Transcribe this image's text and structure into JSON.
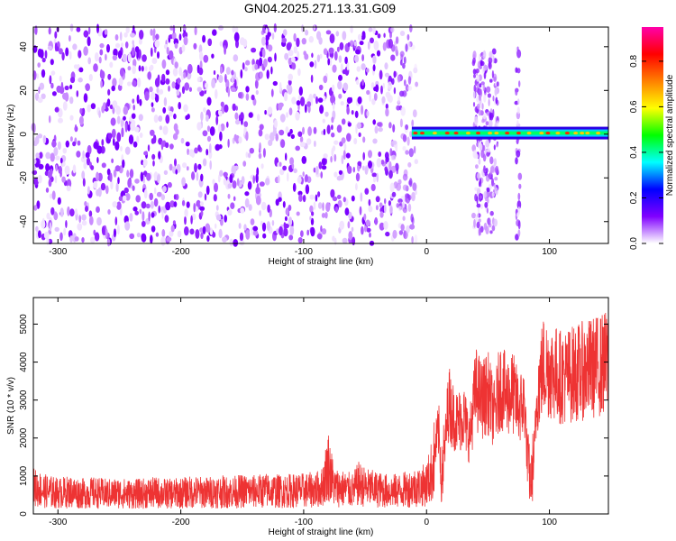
{
  "figure": {
    "title": "GN04.2025.271.13.31.G09"
  },
  "chart_data": [
    {
      "type": "heatmap",
      "name": "spectrogram",
      "xlabel": "Height of straight line (km)",
      "ylabel": "Frequency (Hz)",
      "xlim": [
        -320,
        148
      ],
      "ylim": [
        -50,
        49
      ],
      "x_ticks": [
        -300,
        -200,
        -100,
        0,
        100
      ],
      "y_ticks": [
        -40,
        -20,
        0,
        20,
        40
      ],
      "colorbar": {
        "label": "Normalized spectral amplitude",
        "range": [
          0,
          0.95
        ],
        "ticks": [
          0.0,
          0.2,
          0.4,
          0.6,
          0.8
        ],
        "colors": [
          "#ffffff",
          "#8000ff",
          "#0000ff",
          "#00ffff",
          "#00ff00",
          "#ffff00",
          "#ff8000",
          "#ff0000",
          "#ff00aa"
        ]
      },
      "features": [
        {
          "x_range": [
            -320,
            -8
          ],
          "y_range": [
            -50,
            49
          ],
          "amplitude": 0.1,
          "kind": "scattered noise"
        },
        {
          "x_range": [
            -12,
            148
          ],
          "y": 0.5,
          "amplitude": 0.95,
          "kind": "carrier line"
        },
        {
          "x_range": [
            38,
            58
          ],
          "y_range": [
            -45,
            38
          ],
          "amplitude": 0.15,
          "kind": "spread"
        },
        {
          "x_range": [
            73,
            76
          ],
          "y_range": [
            -48,
            40
          ],
          "amplitude": 0.08,
          "kind": "spread"
        }
      ]
    },
    {
      "type": "line",
      "name": "snr",
      "xlabel": "Height of straight line (km)",
      "ylabel": "SNR (10 * v/v)",
      "xlim": [
        -320,
        148
      ],
      "ylim": [
        0,
        5700
      ],
      "x_ticks": [
        -300,
        -200,
        -100,
        0,
        100
      ],
      "y_ticks": [
        0,
        1000,
        2000,
        3000,
        4000,
        5000
      ],
      "color": "#ee3333",
      "series": [
        {
          "x": [
            -320,
            -310,
            -300,
            -290,
            -280,
            -270,
            -260,
            -250,
            -240,
            -230,
            -220,
            -210,
            -200,
            -190,
            -180,
            -170,
            -160,
            -150,
            -140,
            -130,
            -120,
            -110,
            -100,
            -90,
            -85,
            -80,
            -75,
            -70,
            -65,
            -60,
            -55,
            -50,
            -40,
            -30,
            -20,
            -10,
            -5,
            0,
            5,
            8,
            10,
            12,
            15,
            18,
            20,
            25,
            30,
            35,
            40,
            45,
            50,
            55,
            60,
            65,
            70,
            75,
            80,
            82,
            85,
            88,
            90,
            95,
            100,
            110,
            120,
            130,
            140,
            148
          ],
          "y": [
            700,
            600,
            550,
            580,
            540,
            560,
            530,
            550,
            520,
            540,
            560,
            530,
            550,
            580,
            560,
            590,
            570,
            600,
            590,
            620,
            600,
            610,
            620,
            640,
            700,
            1300,
            700,
            680,
            640,
            620,
            800,
            700,
            640,
            600,
            620,
            700,
            720,
            780,
            1200,
            1900,
            2200,
            900,
            1800,
            3000,
            2700,
            2400,
            2600,
            2000,
            3300,
            3000,
            3200,
            2600,
            3400,
            3100,
            3200,
            2800,
            2900,
            1400,
            800,
            1800,
            3200,
            3900,
            3800,
            3600,
            3700,
            3800,
            3900,
            4000
          ]
        }
      ]
    }
  ]
}
